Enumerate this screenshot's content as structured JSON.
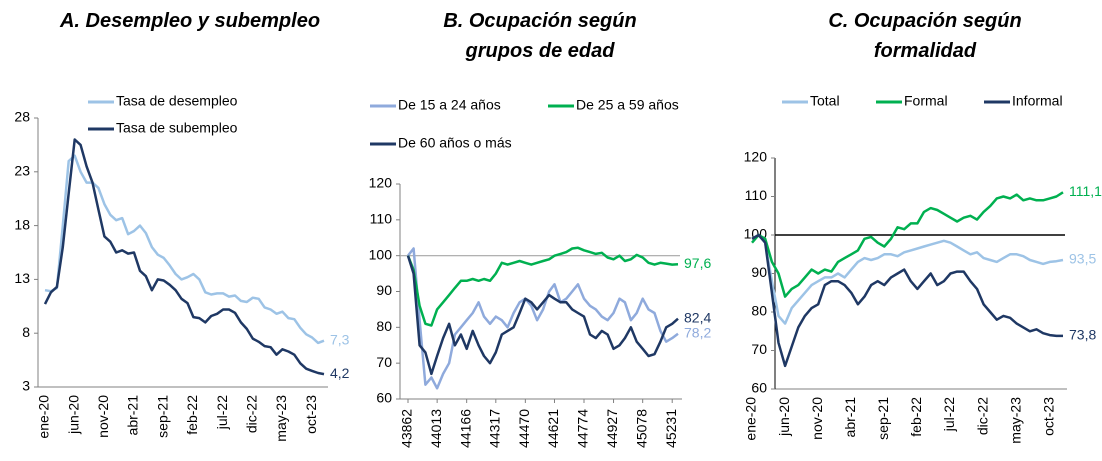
{
  "chart_data": [
    {
      "type": "line",
      "title": "A. Desempleo y subempleo",
      "categories": [
        "ene-20",
        null,
        null,
        null,
        null,
        "jun-20",
        null,
        null,
        null,
        null,
        "nov-20",
        null,
        null,
        null,
        null,
        "abr-21",
        null,
        null,
        null,
        null,
        "sep-21",
        null,
        null,
        null,
        null,
        "feb-22",
        null,
        null,
        null,
        null,
        "jul-22",
        null,
        null,
        null,
        null,
        "dic-22",
        null,
        null,
        null,
        null,
        "may-23",
        null,
        null,
        null,
        null,
        "oct-23",
        null,
        null
      ],
      "ylim": [
        3,
        28
      ],
      "yticks": [
        3,
        8,
        13,
        18,
        23,
        28
      ],
      "series": [
        {
          "name": "Tasa de desempleo",
          "color": "#9dc3e6",
          "values": [
            12.0,
            11.9,
            12.2,
            18.0,
            24.0,
            24.5,
            23.0,
            22.0,
            22.0,
            21.5,
            20.0,
            19.0,
            18.5,
            18.7,
            17.2,
            17.5,
            18.0,
            17.3,
            16.0,
            15.3,
            15.0,
            14.3,
            13.5,
            13.0,
            13.2,
            13.5,
            13.0,
            11.8,
            11.6,
            11.7,
            11.7,
            11.4,
            11.5,
            11.0,
            10.9,
            11.3,
            11.2,
            10.4,
            10.2,
            9.8,
            10.0,
            9.4,
            9.3,
            8.5,
            7.9,
            7.6,
            7.1,
            7.3
          ],
          "value_labels": {
            "47": "7,3"
          }
        },
        {
          "name": "Tasa de subempleo",
          "color": "#1f3864",
          "values": [
            10.7,
            11.8,
            12.3,
            16.0,
            21.0,
            26.0,
            25.5,
            23.5,
            22.0,
            19.5,
            17.0,
            16.5,
            15.5,
            15.7,
            15.4,
            15.5,
            13.8,
            13.3,
            12.0,
            13.0,
            12.9,
            12.5,
            12.0,
            11.2,
            10.8,
            9.5,
            9.4,
            9.0,
            9.6,
            9.8,
            10.2,
            10.2,
            9.9,
            9.0,
            8.4,
            7.5,
            7.2,
            6.8,
            6.7,
            6.0,
            6.5,
            6.3,
            6.0,
            5.2,
            4.7,
            4.5,
            4.3,
            4.2
          ],
          "value_labels": {
            "47": "4,2"
          }
        }
      ]
    },
    {
      "type": "line",
      "title": "B. Ocupación según grupos de edad",
      "x": [
        43862,
        43891,
        43922,
        43952,
        43983,
        44013,
        44044,
        44075,
        44105,
        44136,
        44166,
        44197,
        44228,
        44256,
        44287,
        44317,
        44348,
        44378,
        44409,
        44440,
        44470,
        44501,
        44531,
        44562,
        44593,
        44621,
        44652,
        44682,
        44713,
        44743,
        44774,
        44805,
        44835,
        44866,
        44896,
        44927,
        44958,
        44986,
        45017,
        45047,
        45078,
        45108,
        45139,
        45170,
        45200,
        45231,
        45261
      ],
      "xlim": [
        43862,
        45261
      ],
      "xticks": [
        43862,
        44013,
        44166,
        44317,
        44470,
        44621,
        44774,
        44927,
        45078,
        45231
      ],
      "ylim": [
        60,
        120
      ],
      "yticks": [
        60,
        70,
        80,
        90,
        100,
        110,
        120
      ],
      "hline": 100,
      "hline_color": "#a6a6a6",
      "series": [
        {
          "name": "De 15 a 24 años",
          "color": "#8faadc",
          "values": [
            100,
            102,
            82,
            64,
            66,
            63,
            67,
            70,
            78,
            80,
            82,
            84,
            87,
            83,
            81,
            83,
            82,
            80,
            84,
            87,
            88,
            86,
            82,
            85,
            90,
            92,
            87,
            88,
            90,
            92,
            88,
            86,
            85,
            83,
            82,
            84,
            88,
            87,
            82,
            84,
            88,
            85,
            84,
            79,
            76,
            77,
            78.2
          ],
          "value_labels": {
            "46": "78,2"
          }
        },
        {
          "name": "De 25 a 59 años",
          "color": "#00b050",
          "values": [
            100,
            96,
            86,
            81,
            80.5,
            85,
            87,
            89,
            91,
            93,
            93,
            93.5,
            93,
            93.5,
            93,
            95,
            98,
            97.5,
            98,
            98.5,
            98,
            97.5,
            98,
            98.5,
            99,
            100,
            100.5,
            101,
            102,
            102.2,
            101.5,
            101,
            100.5,
            100.8,
            99.5,
            99,
            100,
            98.5,
            99,
            100.2,
            99.5,
            98,
            97.5,
            98,
            97.8,
            97.5,
            97.6
          ],
          "value_labels": {
            "46": "97,6"
          }
        },
        {
          "name": "De 60 años o más",
          "color": "#1f3864",
          "values": [
            100,
            95,
            75,
            73,
            67,
            72,
            77,
            81,
            75,
            78,
            74,
            79,
            75,
            72,
            70,
            73,
            78,
            79,
            80,
            84,
            88,
            87,
            85,
            87,
            89,
            88,
            87,
            87,
            85,
            84,
            83,
            78,
            77,
            79,
            78,
            74,
            75,
            77,
            80,
            76,
            74,
            72,
            72.5,
            76,
            80,
            81,
            82.4
          ],
          "value_labels": {
            "46": "82,4"
          }
        }
      ]
    },
    {
      "type": "line",
      "title": "C. Ocupación según formalidad",
      "categories": [
        "ene-20",
        null,
        null,
        null,
        null,
        "jun-20",
        null,
        null,
        null,
        null,
        "nov-20",
        null,
        null,
        null,
        null,
        "abr-21",
        null,
        null,
        null,
        null,
        "sep-21",
        null,
        null,
        null,
        null,
        "feb-22",
        null,
        null,
        null,
        null,
        "jul-22",
        null,
        null,
        null,
        null,
        "dic-22",
        null,
        null,
        null,
        null,
        "may-23",
        null,
        null,
        null,
        null,
        "oct-23",
        null,
        null
      ],
      "ylim": [
        60,
        120
      ],
      "yticks": [
        60,
        70,
        80,
        90,
        100,
        110,
        120
      ],
      "hline": 100,
      "hline_color": "#000000",
      "series": [
        {
          "name": "Total",
          "color": "#9dc3e6",
          "values": [
            99,
            100,
            98,
            88,
            79,
            77,
            81,
            83,
            85,
            87,
            88,
            89,
            89,
            90,
            89,
            91,
            93,
            94,
            93.5,
            94,
            95,
            95,
            94.5,
            95.5,
            96,
            96.5,
            97,
            97.5,
            98,
            98.5,
            98,
            97,
            96,
            95,
            95.5,
            94,
            93.5,
            93,
            94,
            95,
            95,
            94.5,
            93.5,
            93,
            92.5,
            93,
            93.2,
            93.5
          ],
          "value_labels": {
            "47": "93,5"
          }
        },
        {
          "name": "Formal",
          "color": "#00b050",
          "values": [
            98,
            100,
            99,
            93,
            90,
            84,
            86,
            87,
            89,
            91,
            90,
            91,
            90.5,
            93,
            94,
            95,
            96,
            99,
            99.5,
            98,
            97,
            99,
            102,
            101.5,
            103,
            103,
            106,
            107,
            106.5,
            105.5,
            104.5,
            103.5,
            104.5,
            105,
            104,
            106,
            107.5,
            109.5,
            110,
            109.5,
            110.5,
            109,
            109.5,
            109,
            109,
            109.5,
            110,
            111.1
          ],
          "value_labels": {
            "47": "111,1"
          }
        },
        {
          "name": "Informal",
          "color": "#1f3864",
          "values": [
            99,
            100,
            98,
            85,
            72,
            66,
            71,
            76,
            79,
            81,
            82,
            87,
            88,
            88,
            87,
            85,
            82,
            84,
            87,
            88,
            87,
            89,
            90,
            91,
            88,
            86,
            88,
            90,
            87,
            88,
            90,
            90.5,
            90.5,
            88,
            86,
            82,
            80,
            78,
            79,
            78.5,
            77,
            76,
            75,
            75.5,
            74.5,
            74,
            73.8,
            73.8
          ],
          "value_labels": {
            "47": "73,8"
          }
        }
      ]
    }
  ]
}
